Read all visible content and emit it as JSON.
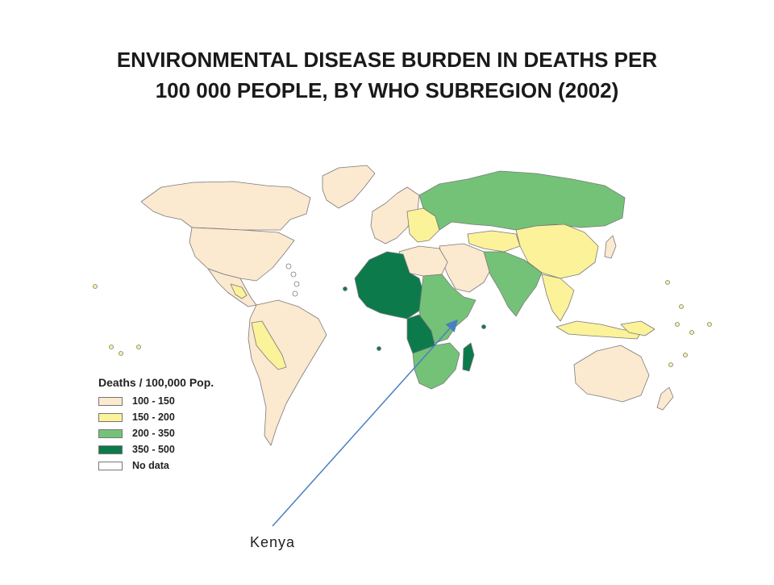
{
  "title_line1": "ENVIRONMENTAL DISEASE BURDEN IN DEATHS PER",
  "title_line2": "100 000 PEOPLE, BY WHO SUBREGION (2002)",
  "legend": {
    "title": "Deaths / 100,000 Pop.",
    "items": [
      {
        "label": "100 - 150",
        "color": "#fbe9d0"
      },
      {
        "label": "150 - 200",
        "color": "#fbf29a"
      },
      {
        "label": "200 - 350",
        "color": "#74c277"
      },
      {
        "label": "350 - 500",
        "color": "#0d7a4c"
      },
      {
        "label": "No data",
        "color": "#ffffff"
      }
    ]
  },
  "annotation": {
    "label": "Kenya",
    "arrow_color": "#4a7fc1"
  }
}
